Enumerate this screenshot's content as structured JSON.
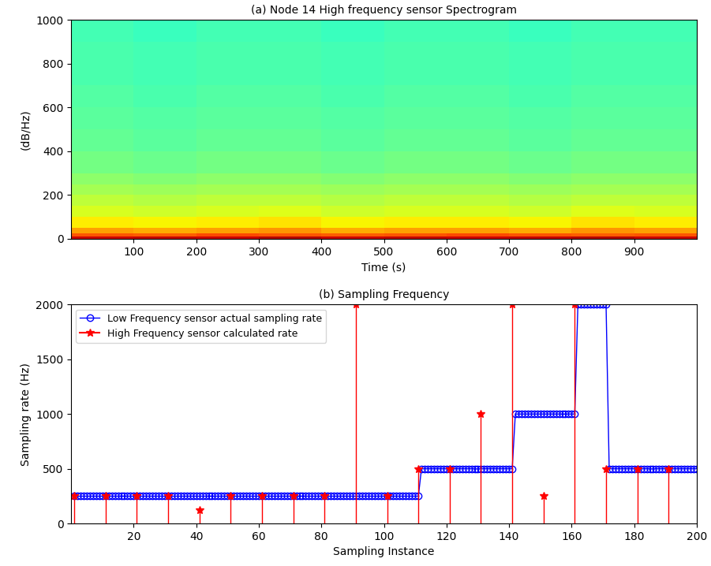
{
  "chart_data": [
    {
      "type": "heatmap",
      "title": "(a) Node 14 High frequency sensor Spectrogram",
      "x_label": "Time (s)",
      "y_label": "(dB/Hz)",
      "x_edges": [
        0,
        100,
        200,
        300,
        400,
        500,
        600,
        700,
        800,
        900,
        1000
      ],
      "y_edges": [
        0,
        10,
        25,
        50,
        100,
        150,
        200,
        250,
        300,
        400,
        500,
        600,
        700,
        800,
        900,
        1000
      ],
      "cells": [
        [
          0.93,
          0.94,
          0.93,
          0.95,
          0.93,
          0.94,
          0.93,
          0.94,
          0.95,
          0.93
        ],
        [
          0.82,
          0.81,
          0.83,
          0.82,
          0.81,
          0.82,
          0.83,
          0.82,
          0.81,
          0.82
        ],
        [
          0.74,
          0.73,
          0.74,
          0.75,
          0.73,
          0.74,
          0.74,
          0.73,
          0.75,
          0.74
        ],
        [
          0.66,
          0.65,
          0.66,
          0.67,
          0.65,
          0.66,
          0.66,
          0.65,
          0.67,
          0.66
        ],
        [
          0.61,
          0.6,
          0.61,
          0.62,
          0.6,
          0.61,
          0.61,
          0.6,
          0.62,
          0.61
        ],
        [
          0.58,
          0.57,
          0.58,
          0.58,
          0.57,
          0.58,
          0.58,
          0.57,
          0.58,
          0.58
        ],
        [
          0.55,
          0.54,
          0.55,
          0.55,
          0.54,
          0.55,
          0.55,
          0.54,
          0.55,
          0.55
        ],
        [
          0.52,
          0.51,
          0.52,
          0.52,
          0.51,
          0.52,
          0.52,
          0.51,
          0.52,
          0.52
        ],
        [
          0.49,
          0.48,
          0.49,
          0.49,
          0.48,
          0.49,
          0.49,
          0.48,
          0.49,
          0.49
        ],
        [
          0.47,
          0.46,
          0.47,
          0.47,
          0.46,
          0.47,
          0.47,
          0.46,
          0.47,
          0.47
        ],
        [
          0.46,
          0.45,
          0.46,
          0.46,
          0.45,
          0.46,
          0.46,
          0.45,
          0.46,
          0.46
        ],
        [
          0.45,
          0.44,
          0.45,
          0.45,
          0.44,
          0.45,
          0.45,
          0.44,
          0.45,
          0.45
        ],
        [
          0.44,
          0.43,
          0.44,
          0.44,
          0.43,
          0.44,
          0.44,
          0.43,
          0.44,
          0.44
        ],
        [
          0.44,
          0.43,
          0.44,
          0.44,
          0.43,
          0.44,
          0.44,
          0.43,
          0.44,
          0.44
        ],
        [
          0.43,
          0.42,
          0.43,
          0.43,
          0.42,
          0.43,
          0.43,
          0.42,
          0.43,
          0.43
        ]
      ],
      "color_range": [
        0,
        1
      ],
      "xlim": [
        0,
        1000
      ],
      "xticks": [
        100,
        200,
        300,
        400,
        500,
        600,
        700,
        800,
        900
      ],
      "ylim": [
        0,
        1000
      ],
      "yticks": [
        0,
        200,
        400,
        600,
        800,
        1000
      ]
    },
    {
      "type": "line",
      "title": "(b) Sampling Frequency",
      "x_label": "Sampling Instance",
      "y_label": "Sampling rate (Hz)",
      "legend": "upper left",
      "xlim": [
        0,
        200
      ],
      "xticks": [
        20,
        40,
        60,
        80,
        100,
        120,
        140,
        160,
        180,
        200
      ],
      "ylim": [
        0,
        2000
      ],
      "yticks": [
        0,
        500,
        1000,
        1500,
        2000
      ],
      "series": [
        {
          "name": "Low Frequency sensor actual sampling rate",
          "type": "line",
          "color": "#0000ff",
          "marker": "circle",
          "line_style": "solid",
          "x": [
            1,
            2,
            3,
            4,
            5,
            6,
            7,
            8,
            9,
            10,
            11,
            12,
            13,
            14,
            15,
            16,
            17,
            18,
            19,
            20,
            21,
            22,
            23,
            24,
            25,
            26,
            27,
            28,
            29,
            30,
            31,
            32,
            33,
            34,
            35,
            36,
            37,
            38,
            39,
            40,
            41,
            42,
            43,
            44,
            45,
            46,
            47,
            48,
            49,
            50,
            51,
            52,
            53,
            54,
            55,
            56,
            57,
            58,
            59,
            60,
            61,
            62,
            63,
            64,
            65,
            66,
            67,
            68,
            69,
            70,
            71,
            72,
            73,
            74,
            75,
            76,
            77,
            78,
            79,
            80,
            81,
            82,
            83,
            84,
            85,
            86,
            87,
            88,
            89,
            90,
            91,
            92,
            93,
            94,
            95,
            96,
            97,
            98,
            99,
            100,
            101,
            102,
            103,
            104,
            105,
            106,
            107,
            108,
            109,
            110,
            111,
            112,
            113,
            114,
            115,
            116,
            117,
            118,
            119,
            120,
            121,
            122,
            123,
            124,
            125,
            126,
            127,
            128,
            129,
            130,
            131,
            132,
            133,
            134,
            135,
            136,
            137,
            138,
            139,
            140,
            141,
            142,
            143,
            144,
            145,
            146,
            147,
            148,
            149,
            150,
            151,
            152,
            153,
            154,
            155,
            156,
            157,
            158,
            159,
            160,
            161,
            162,
            163,
            164,
            165,
            166,
            167,
            168,
            169,
            170,
            171,
            172,
            173,
            174,
            175,
            176,
            177,
            178,
            179,
            180,
            181,
            182,
            183,
            184,
            185,
            186,
            187,
            188,
            189,
            190,
            191,
            192,
            193,
            194,
            195,
            196,
            197,
            198,
            199,
            200
          ],
          "values": [
            250,
            250,
            250,
            250,
            250,
            250,
            250,
            250,
            250,
            250,
            250,
            250,
            250,
            250,
            250,
            250,
            250,
            250,
            250,
            250,
            250,
            250,
            250,
            250,
            250,
            250,
            250,
            250,
            250,
            250,
            250,
            250,
            250,
            250,
            250,
            250,
            250,
            250,
            250,
            250,
            250,
            250,
            250,
            250,
            250,
            250,
            250,
            250,
            250,
            250,
            250,
            250,
            250,
            250,
            250,
            250,
            250,
            250,
            250,
            250,
            250,
            250,
            250,
            250,
            250,
            250,
            250,
            250,
            250,
            250,
            250,
            250,
            250,
            250,
            250,
            250,
            250,
            250,
            250,
            250,
            250,
            250,
            250,
            250,
            250,
            250,
            250,
            250,
            250,
            250,
            250,
            250,
            250,
            250,
            250,
            250,
            250,
            250,
            250,
            250,
            250,
            250,
            250,
            250,
            250,
            250,
            250,
            250,
            250,
            250,
            250,
            500,
            500,
            500,
            500,
            500,
            500,
            500,
            500,
            500,
            500,
            500,
            500,
            500,
            500,
            500,
            500,
            500,
            500,
            500,
            500,
            500,
            500,
            500,
            500,
            500,
            500,
            500,
            500,
            500,
            500,
            1000,
            1000,
            1000,
            1000,
            1000,
            1000,
            1000,
            1000,
            1000,
            1000,
            1000,
            1000,
            1000,
            1000,
            1000,
            1000,
            1000,
            1000,
            1000,
            1000,
            2000,
            2000,
            2000,
            2000,
            2000,
            2000,
            2000,
            2000,
            2000,
            2000,
            500,
            500,
            500,
            500,
            500,
            500,
            500,
            500,
            500,
            500,
            500,
            500,
            500,
            500,
            500,
            500,
            500,
            500,
            500,
            500,
            500,
            500,
            500,
            500,
            500,
            500,
            500,
            500,
            500
          ]
        },
        {
          "name": "High Frequency sensor calculated rate",
          "type": "stem",
          "color": "#ff0000",
          "marker": "star",
          "x": [
            1,
            11,
            21,
            31,
            41,
            51,
            61,
            71,
            81,
            91,
            101,
            111,
            121,
            131,
            141,
            151,
            161,
            171,
            181,
            191
          ],
          "values": [
            250,
            250,
            250,
            250,
            125,
            250,
            250,
            250,
            250,
            2000,
            250,
            500,
            500,
            1000,
            2000,
            250,
            2000,
            500,
            500,
            500
          ]
        }
      ]
    }
  ]
}
